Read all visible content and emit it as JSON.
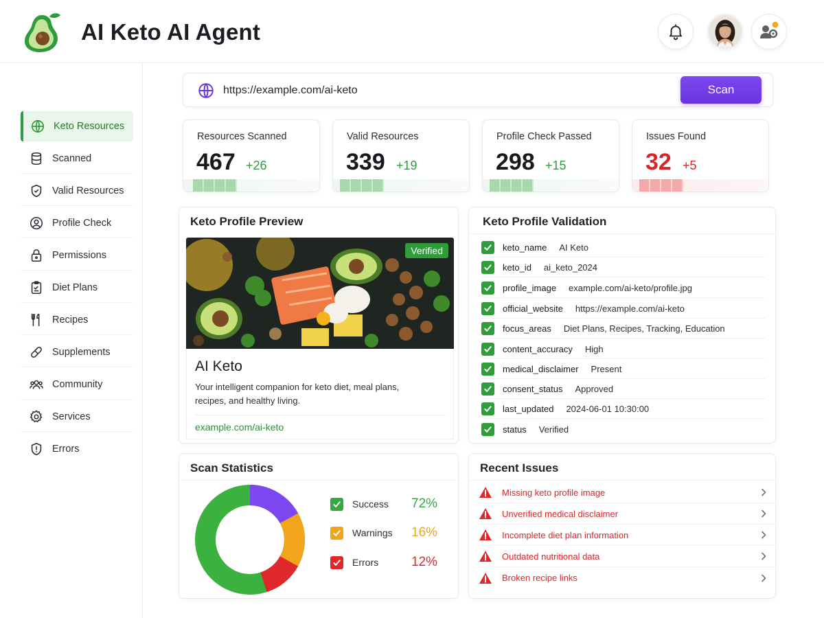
{
  "app": {
    "title": "AI Keto AI Agent"
  },
  "sidebar": {
    "items": [
      {
        "label": "Keto Resources",
        "icon": "globe-icon",
        "active": true
      },
      {
        "label": "Scanned",
        "icon": "database-icon"
      },
      {
        "label": "Valid Resources",
        "icon": "shield-check-icon"
      },
      {
        "label": "Profile Check",
        "icon": "user-circle-icon"
      },
      {
        "label": "Permissions",
        "icon": "lock-icon"
      },
      {
        "label": "Diet Plans",
        "icon": "clipboard-icon"
      },
      {
        "label": "Recipes",
        "icon": "utensils-icon"
      },
      {
        "label": "Supplements",
        "icon": "pill-icon"
      },
      {
        "label": "Community",
        "icon": "users-icon"
      },
      {
        "label": "Services",
        "icon": "gear-icon"
      },
      {
        "label": "Errors",
        "icon": "alert-shield-icon"
      }
    ]
  },
  "search": {
    "value": "https://example.com/ai-keto",
    "button_label": "Scan"
  },
  "stats": [
    {
      "title": "Resources Scanned",
      "value": "467",
      "delta": "+26"
    },
    {
      "title": "Valid Resources",
      "value": "339",
      "delta": "+19"
    },
    {
      "title": "Profile Check Passed",
      "value": "298",
      "delta": "+15"
    },
    {
      "title": "Issues Found",
      "value": "32",
      "delta": "+5"
    }
  ],
  "preview": {
    "title": "Keto Profile Preview",
    "badge": "Verified",
    "name": "AI Keto",
    "description": "Your intelligent companion for keto diet, meal plans, recipes, and healthy living.",
    "link": "example.com/ai-keto"
  },
  "validation": {
    "title": "Keto Profile Validation",
    "rows": [
      {
        "key": "keto_name",
        "value": "AI Keto"
      },
      {
        "key": "keto_id",
        "value": "ai_keto_2024"
      },
      {
        "key": "profile_image",
        "value": "example.com/ai-keto/profile.jpg"
      },
      {
        "key": "official_website",
        "value": "https://example.com/ai-keto"
      },
      {
        "key": "focus_areas",
        "value": "Diet Plans, Recipes, Tracking, Education"
      },
      {
        "key": "content_accuracy",
        "value": "High"
      },
      {
        "key": "medical_disclaimer",
        "value": "Present"
      },
      {
        "key": "consent_status",
        "value": "Approved"
      },
      {
        "key": "last_updated",
        "value": "2024-06-01 10:30:00"
      },
      {
        "key": "status",
        "value": "Verified"
      }
    ]
  },
  "scan_statistics": {
    "title": "Scan Statistics",
    "legend": [
      {
        "name": "Success",
        "percent": "72%",
        "value": 72,
        "color": "#35a83f"
      },
      {
        "name": "Warnings",
        "percent": "16%",
        "value": 16,
        "color": "#f2a51a"
      },
      {
        "name": "Errors",
        "percent": "12%",
        "value": 12,
        "color": "#e0272b"
      }
    ],
    "donut_colors": {
      "success": "#3bb13f",
      "purple": "#7c47ee",
      "warnings": "#f2a51a",
      "errors": "#e0272b"
    }
  },
  "issues": {
    "title": "Recent Issues",
    "items": [
      "Missing keto profile image",
      "Unverified medical disclaimer",
      "Incomplete diet plan information",
      "Outdated nutritional data",
      "Broken recipe links"
    ]
  },
  "colors": {
    "accent": "#6a34e0",
    "green": "#2f9d3a",
    "red": "#d8262a"
  }
}
